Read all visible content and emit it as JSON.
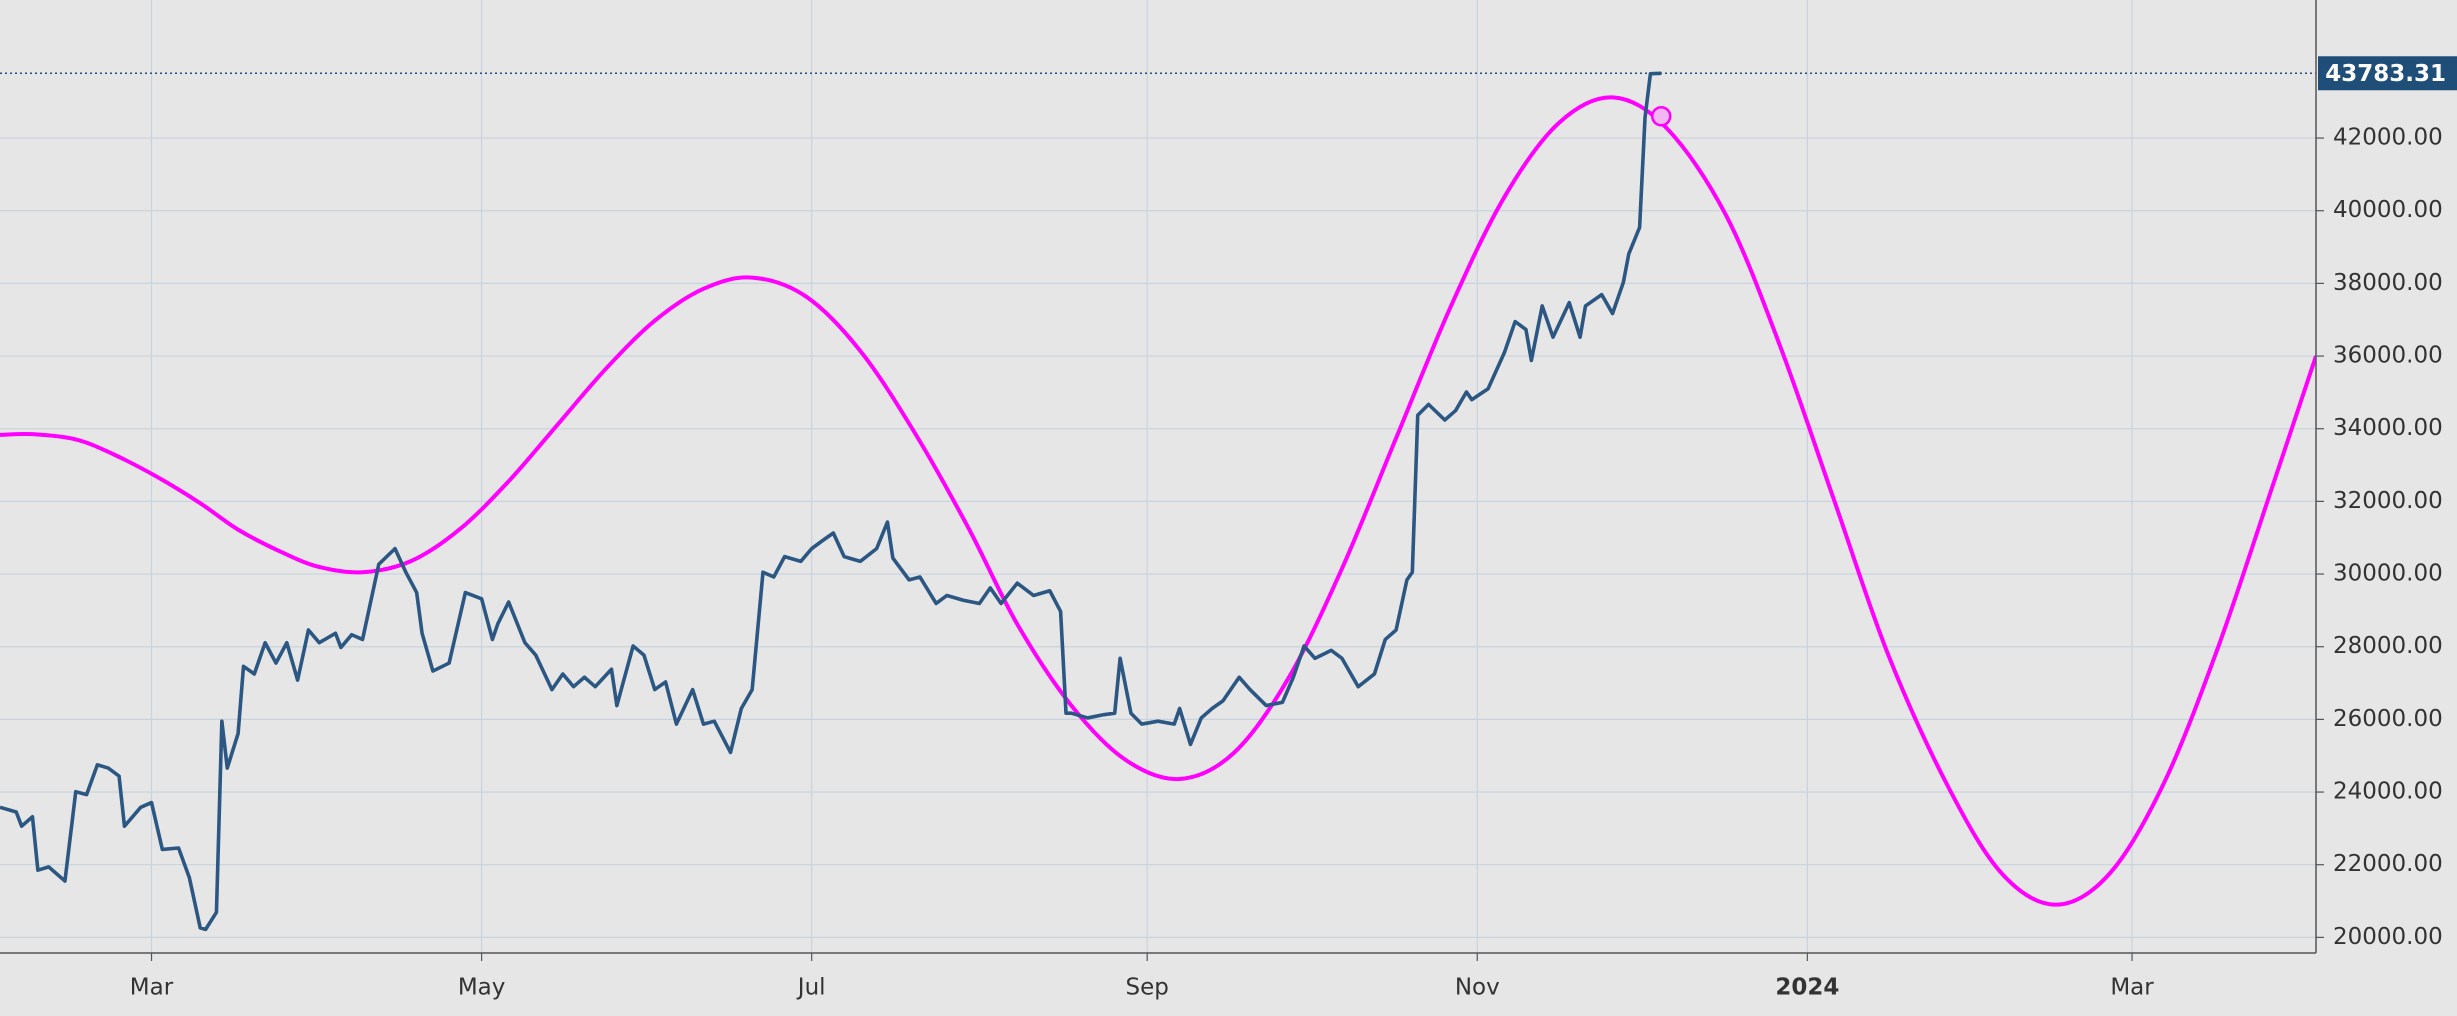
{
  "chart_data": {
    "type": "line",
    "xlim": [
      31,
      459
    ],
    "ylim": [
      19570,
      45800
    ],
    "xticks": [
      {
        "value": 59,
        "label": "Mar"
      },
      {
        "value": 120,
        "label": "May"
      },
      {
        "value": 181,
        "label": "Jul"
      },
      {
        "value": 243,
        "label": "Sep"
      },
      {
        "value": 304,
        "label": "Nov"
      },
      {
        "value": 365,
        "label": "2024"
      },
      {
        "value": 425,
        "label": "Mar"
      }
    ],
    "yticks": [
      {
        "value": 20000,
        "label": "20000.00"
      },
      {
        "value": 22000,
        "label": "22000.00"
      },
      {
        "value": 24000,
        "label": "24000.00"
      },
      {
        "value": 26000,
        "label": "26000.00"
      },
      {
        "value": 28000,
        "label": "28000.00"
      },
      {
        "value": 30000,
        "label": "30000.00"
      },
      {
        "value": 32000,
        "label": "32000.00"
      },
      {
        "value": 34000,
        "label": "34000.00"
      },
      {
        "value": 36000,
        "label": "36000.00"
      },
      {
        "value": 38000,
        "label": "38000.00"
      },
      {
        "value": 40000,
        "label": "40000.00"
      },
      {
        "value": 42000,
        "label": "42000.00"
      }
    ],
    "grid": true,
    "last_value": 43783.31,
    "last_value_color": "#1f4e79",
    "series": [
      {
        "color": "#2b5782",
        "x": [
          31,
          34,
          35,
          37,
          38,
          40,
          43,
          45,
          47,
          49,
          51,
          53,
          54,
          57,
          59,
          61,
          64,
          66,
          68,
          69,
          71,
          72,
          73,
          75,
          76,
          78,
          80,
          82,
          84,
          86,
          88,
          90,
          93,
          94,
          96,
          98,
          101,
          104,
          106,
          108,
          109,
          111,
          114,
          117,
          120,
          122,
          123,
          125,
          128,
          130,
          133,
          135,
          137,
          139,
          141,
          144,
          145,
          148,
          150,
          152,
          154,
          156,
          159,
          161,
          163,
          166,
          168,
          170,
          172,
          174,
          176,
          179,
          181,
          183,
          185,
          187,
          190,
          193,
          195,
          196,
          199,
          201,
          204,
          206,
          209,
          212,
          214,
          216,
          219,
          222,
          225,
          227,
          228,
          229,
          232,
          235,
          237,
          238,
          240,
          242,
          245,
          248,
          249,
          251,
          253,
          255,
          257,
          260,
          262,
          265,
          268,
          270,
          272,
          274,
          277,
          279,
          282,
          285,
          287,
          289,
          291,
          292,
          293,
          295,
          298,
          300,
          302,
          303,
          306,
          309,
          311,
          313,
          314,
          316,
          318,
          321,
          323,
          324,
          327,
          329,
          331,
          332,
          334,
          335,
          336,
          338
        ],
        "values": [
          23580,
          23450,
          23060,
          23320,
          21850,
          21940,
          21550,
          24010,
          23930,
          24750,
          24660,
          24440,
          23060,
          23580,
          23710,
          22420,
          22460,
          21640,
          20260,
          20220,
          20690,
          25950,
          24660,
          25610,
          27460,
          27250,
          28110,
          27550,
          28110,
          27080,
          28460,
          28110,
          28370,
          27980,
          28330,
          28200,
          30270,
          30700,
          30050,
          29490,
          28370,
          27330,
          27550,
          29490,
          29320,
          28200,
          28630,
          29230,
          28110,
          27770,
          26820,
          27250,
          26900,
          27160,
          26900,
          27380,
          26380,
          28020,
          27770,
          26820,
          27030,
          25870,
          26820,
          25870,
          25950,
          25090,
          26300,
          26820,
          30050,
          29920,
          30480,
          30350,
          30700,
          30920,
          31130,
          30480,
          30350,
          30700,
          31430,
          30440,
          29840,
          29920,
          29190,
          29410,
          29280,
          29190,
          29620,
          29190,
          29750,
          29410,
          29540,
          28970,
          26170,
          26170,
          26040,
          26130,
          26170,
          27680,
          26170,
          25870,
          25950,
          25870,
          26300,
          25310,
          26040,
          26300,
          26510,
          27160,
          26820,
          26380,
          26470,
          27160,
          28020,
          27680,
          27900,
          27680,
          26900,
          27250,
          28200,
          28460,
          29840,
          30050,
          34370,
          34670,
          34240,
          34500,
          35010,
          34800,
          35100,
          36090,
          36950,
          36730,
          35880,
          37380,
          36520,
          37470,
          36520,
          37380,
          37690,
          37170,
          38030,
          38810,
          39540,
          42560,
          43770,
          43783.31
        ]
      },
      {
        "color": "#ff00ff",
        "smooth": true,
        "x": [
          31,
          37,
          45,
          52,
          60,
          68,
          75,
          83,
          90,
          98,
          107,
          116,
          125,
          134,
          143,
          152,
          161,
          170,
          180,
          190,
          200,
          210,
          219,
          229,
          239,
          249,
          259,
          269,
          279,
          289,
          299,
          309,
          319,
          329,
          339,
          350,
          360,
          370,
          380,
          391,
          401,
          411,
          421,
          431,
          441,
          451,
          459
        ],
        "values": [
          33830,
          33850,
          33705,
          33294,
          32677,
          31950,
          31223,
          30606,
          30195,
          30050,
          30359,
          31237,
          32553,
          34105,
          35656,
          36973,
          37851,
          38160,
          37634,
          36140,
          33900,
          31260,
          28620,
          26380,
          24886,
          24360,
          25075,
          27106,
          30151,
          33740,
          37329,
          40373,
          42405,
          43120,
          42273,
          39867,
          36261,
          32010,
          27759,
          24153,
          21747,
          20900,
          21779,
          24278,
          28022,
          32435,
          36000
        ]
      }
    ],
    "marker": {
      "x": 338,
      "value": 42600,
      "color": "#ff00ff",
      "fill": "#f2b6f2"
    }
  }
}
